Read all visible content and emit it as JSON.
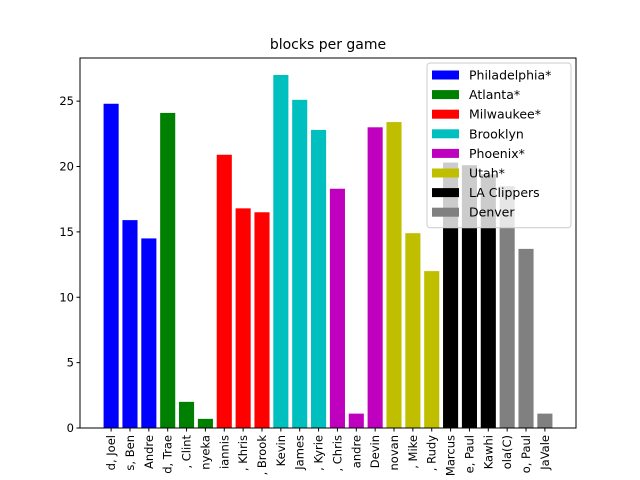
{
  "chart_data": {
    "type": "bar",
    "title": "blocks per game",
    "xlabel": "",
    "ylabel": "",
    "ylim": [
      0,
      28.3
    ],
    "yticks": [
      0,
      5,
      10,
      15,
      20,
      25
    ],
    "grid": false,
    "legend_position": "top-right",
    "categories": [
      "d, Joel",
      "s, Ben",
      "Andre",
      "d, Trae",
      ", Clint",
      "nyeka",
      "iannis",
      ", Khris",
      ", Brook",
      "Kevin",
      "James",
      ", Kyrie",
      ", Chris",
      "andre",
      "Devin",
      "novan",
      ", Mike",
      ", Rudy",
      "Marcus",
      "e, Paul",
      "Kawhi",
      "ola(C)",
      "o, Paul",
      "JaVale"
    ],
    "values": [
      24.8,
      15.9,
      14.5,
      24.1,
      2.0,
      0.7,
      20.9,
      16.8,
      16.5,
      27.0,
      25.1,
      22.8,
      18.3,
      1.1,
      23.0,
      23.4,
      14.9,
      12.0,
      20.3,
      20.1,
      19.4,
      18.5,
      13.7,
      1.1
    ],
    "series": [
      {
        "name": "Philadelphia*",
        "color": "#0000ff",
        "indices": [
          0,
          1,
          2
        ]
      },
      {
        "name": "Atlanta*",
        "color": "#008000",
        "indices": [
          3,
          4,
          5
        ]
      },
      {
        "name": "Milwaukee*",
        "color": "#ff0000",
        "indices": [
          6,
          7,
          8
        ]
      },
      {
        "name": "Brooklyn",
        "color": "#00bfbf",
        "indices": [
          9,
          10,
          11
        ]
      },
      {
        "name": "Phoenix*",
        "color": "#bf00bf",
        "indices": [
          12,
          13,
          14
        ]
      },
      {
        "name": "Utah*",
        "color": "#bfbf00",
        "indices": [
          15,
          16,
          17
        ]
      },
      {
        "name": "LA Clippers",
        "color": "#000000",
        "indices": [
          18,
          19,
          20
        ]
      },
      {
        "name": "Denver",
        "color": "#808080",
        "indices": [
          21,
          22,
          23
        ]
      }
    ]
  }
}
